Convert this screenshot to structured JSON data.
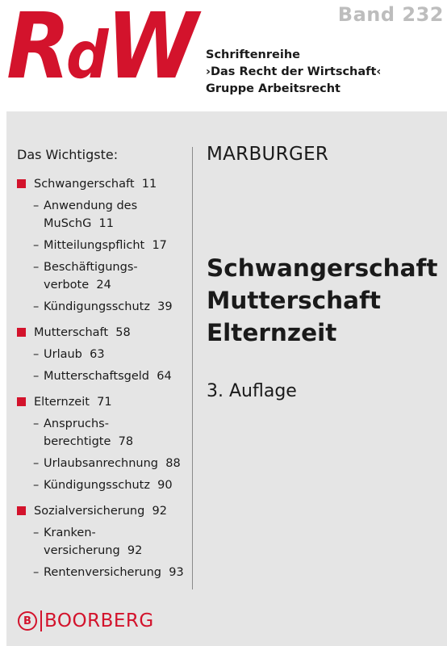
{
  "header": {
    "logo": {
      "big1": "R",
      "small": "d",
      "big2": "W"
    },
    "band": "Band 232",
    "series": [
      "Schriftenreihe",
      "›Das Recht der Wirtschaft‹",
      "Gruppe Arbeitsrecht"
    ]
  },
  "toc": {
    "title": "Das Wichtigste:",
    "sections": [
      {
        "label": "Schwangerschaft  11",
        "items": [
          "Anwendung des MuSchG  11",
          "Mitteilungspflicht  17",
          "Beschäftigungs-verbote  24",
          "Kündigungsschutz  39"
        ]
      },
      {
        "label": "Mutterschaft  58",
        "items": [
          "Urlaub  63",
          "Mutterschaftsgeld  64"
        ]
      },
      {
        "label": "Elternzeit  71",
        "items": [
          "Anspruchs-berechtigte  78",
          "Urlaubsanrechnung  88",
          "Kündigungsschutz  90"
        ]
      },
      {
        "label": "Sozialversicherung  92",
        "items": [
          "Kranken-versicherung  92",
          "Rentenversicherung  93"
        ]
      }
    ]
  },
  "main": {
    "author": "MARBURGER",
    "title": [
      "Schwangerschaft",
      "Mutterschaft",
      "Elternzeit"
    ],
    "edition": "3. Auflage"
  },
  "publisher": {
    "mark": "B",
    "name": "BOORBERG"
  },
  "colors": {
    "accent": "#d3132c",
    "panel": "#e5e5e5",
    "band": "#bdbdbd"
  }
}
